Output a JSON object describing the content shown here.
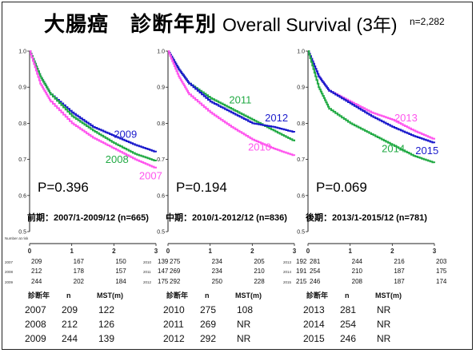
{
  "title": {
    "main": "大腸癌　診断年別",
    "sub": "Overall Survival (3年)",
    "n": "n=2,282"
  },
  "colors": {
    "blue": "#1a1acc",
    "green": "#22aa44",
    "magenta": "#ff55ee",
    "axis": "#222222"
  },
  "at_risk_label": "Number at risk",
  "chart_data": [
    {
      "type": "line",
      "period_label": "前期：2007/1-2009/12 (n=665)",
      "p_value": "P=0.396",
      "xlim": [
        0,
        3
      ],
      "ylim": [
        0.5,
        1.0
      ],
      "xticks": [
        "0",
        "1",
        "2",
        "3"
      ],
      "yticks": [
        "0.5",
        "0.6",
        "0.7",
        "0.8",
        "0.9",
        "1.0"
      ],
      "series": [
        {
          "name": "2009",
          "color": "blue",
          "x": [
            0,
            0.25,
            0.5,
            1,
            1.5,
            2,
            2.5,
            3
          ],
          "y": [
            1.0,
            0.93,
            0.88,
            0.83,
            0.79,
            0.765,
            0.74,
            0.72
          ],
          "label_at": [
            2.0,
            0.76
          ]
        },
        {
          "name": "2008",
          "color": "green",
          "x": [
            0,
            0.25,
            0.5,
            1,
            1.5,
            2,
            2.5,
            3
          ],
          "y": [
            1.0,
            0.93,
            0.88,
            0.82,
            0.78,
            0.745,
            0.715,
            0.695
          ],
          "label_at": [
            1.8,
            0.69
          ]
        },
        {
          "name": "2007",
          "color": "magenta",
          "x": [
            0,
            0.25,
            0.5,
            1,
            1.5,
            2,
            2.5,
            3
          ],
          "y": [
            1.0,
            0.91,
            0.86,
            0.8,
            0.76,
            0.73,
            0.7,
            0.675
          ],
          "label_at": [
            2.6,
            0.645
          ]
        }
      ],
      "at_risk": [
        {
          "label": "2007",
          "values": [
            "209",
            "167",
            "150",
            "139"
          ]
        },
        {
          "label": "2008",
          "values": [
            "212",
            "178",
            "157",
            "147"
          ]
        },
        {
          "label": "2009",
          "values": [
            "244",
            "202",
            "184",
            "175"
          ]
        }
      ],
      "mst": {
        "headers": [
          "診断年",
          "n",
          "MST(m)"
        ],
        "rows": [
          [
            "2007",
            "209",
            "122"
          ],
          [
            "2008",
            "212",
            "126"
          ],
          [
            "2009",
            "244",
            "139"
          ]
        ]
      }
    },
    {
      "type": "line",
      "period_label": "中期：2010/1-2012/12 (n=836)",
      "p_value": "P=0.194",
      "xlim": [
        0,
        3
      ],
      "ylim": [
        0.5,
        1.0
      ],
      "xticks": [
        "0",
        "1",
        "2",
        "3"
      ],
      "yticks": [
        "0.5",
        "0.6",
        "0.7",
        "0.8",
        "0.9",
        "1.0"
      ],
      "series": [
        {
          "name": "2011",
          "color": "green",
          "x": [
            0,
            0.25,
            0.5,
            1,
            1.5,
            2,
            2.5,
            3
          ],
          "y": [
            1.0,
            0.95,
            0.91,
            0.87,
            0.84,
            0.81,
            0.78,
            0.75
          ],
          "label_at": [
            1.45,
            0.855
          ]
        },
        {
          "name": "2012",
          "color": "blue",
          "x": [
            0,
            0.25,
            0.5,
            1,
            1.5,
            2,
            2.5,
            3
          ],
          "y": [
            1.0,
            0.95,
            0.91,
            0.86,
            0.83,
            0.8,
            0.79,
            0.775
          ],
          "label_at": [
            2.3,
            0.805
          ]
        },
        {
          "name": "2010",
          "color": "magenta",
          "x": [
            0,
            0.25,
            0.5,
            1,
            1.5,
            2,
            2.5,
            3
          ],
          "y": [
            1.0,
            0.93,
            0.88,
            0.83,
            0.79,
            0.755,
            0.73,
            0.71
          ],
          "label_at": [
            1.9,
            0.725
          ]
        }
      ],
      "at_risk": [
        {
          "label": "2010",
          "values": [
            "275",
            "234",
            "205",
            "192"
          ]
        },
        {
          "label": "2011",
          "values": [
            "269",
            "234",
            "210",
            "191"
          ]
        },
        {
          "label": "2012",
          "values": [
            "292",
            "250",
            "228",
            "215"
          ]
        }
      ],
      "mst": {
        "headers": [
          "診断年",
          "n",
          "MST(m)"
        ],
        "rows": [
          [
            "2010",
            "275",
            "108"
          ],
          [
            "2011",
            "269",
            "NR"
          ],
          [
            "2012",
            "292",
            "NR"
          ]
        ]
      }
    },
    {
      "type": "line",
      "period_label": "後期：2013/1-2015/12 (n=781)",
      "p_value": "P=0.069",
      "xlim": [
        0,
        3
      ],
      "ylim": [
        0.5,
        1.0
      ],
      "xticks": [
        "0",
        "1",
        "2",
        "3"
      ],
      "yticks": [
        "0.5",
        "0.6",
        "0.7",
        "0.8",
        "0.9",
        "1.0"
      ],
      "series": [
        {
          "name": "2013",
          "color": "magenta",
          "x": [
            0,
            0.25,
            0.5,
            1,
            1.5,
            2,
            2.5,
            3
          ],
          "y": [
            1.0,
            0.93,
            0.89,
            0.86,
            0.83,
            0.81,
            0.78,
            0.755
          ],
          "label_at": [
            2.05,
            0.805
          ]
        },
        {
          "name": "2015",
          "color": "blue",
          "x": [
            0,
            0.25,
            0.5,
            1,
            1.5,
            2,
            2.5,
            3
          ],
          "y": [
            1.0,
            0.93,
            0.89,
            0.855,
            0.82,
            0.79,
            0.765,
            0.745
          ],
          "label_at": [
            2.55,
            0.715
          ]
        },
        {
          "name": "2014",
          "color": "green",
          "x": [
            0,
            0.25,
            0.5,
            1,
            1.5,
            2,
            2.5,
            3
          ],
          "y": [
            1.0,
            0.9,
            0.84,
            0.8,
            0.77,
            0.74,
            0.71,
            0.69
          ],
          "label_at": [
            1.75,
            0.72
          ]
        }
      ],
      "at_risk": [
        {
          "label": "2013",
          "values": [
            "281",
            "244",
            "216",
            "203"
          ]
        },
        {
          "label": "2014",
          "values": [
            "254",
            "210",
            "187",
            "175"
          ]
        },
        {
          "label": "2015",
          "values": [
            "246",
            "208",
            "187",
            "174"
          ]
        }
      ],
      "mst": {
        "headers": [
          "診断年",
          "n",
          "MST(m)"
        ],
        "rows": [
          [
            "2013",
            "281",
            "NR"
          ],
          [
            "2014",
            "254",
            "NR"
          ],
          [
            "2015",
            "246",
            "NR"
          ]
        ]
      }
    }
  ]
}
